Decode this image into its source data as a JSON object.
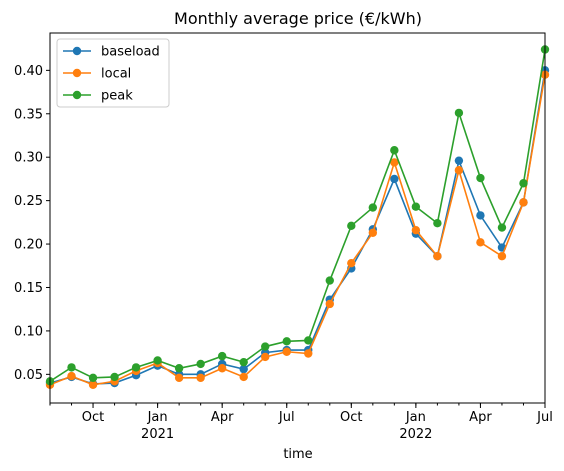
{
  "chart_data": {
    "type": "line",
    "title": "Monthly average price (€/kWh)",
    "xlabel": "time",
    "ylabel": "",
    "x": [
      "2020-08",
      "2020-09",
      "2020-10",
      "2020-11",
      "2020-12",
      "2021-01",
      "2021-02",
      "2021-03",
      "2021-04",
      "2021-05",
      "2021-06",
      "2021-07",
      "2021-08",
      "2021-09",
      "2021-10",
      "2021-11",
      "2021-12",
      "2022-01",
      "2022-02",
      "2022-03",
      "2022-04",
      "2022-05",
      "2022-06",
      "2022-07"
    ],
    "x_ticks": [
      {
        "month": "2020-10",
        "label": "Oct",
        "sublabel": ""
      },
      {
        "month": "2021-01",
        "label": "Jan",
        "sublabel": "2021"
      },
      {
        "month": "2021-04",
        "label": "Apr",
        "sublabel": ""
      },
      {
        "month": "2021-07",
        "label": "Jul",
        "sublabel": ""
      },
      {
        "month": "2021-10",
        "label": "Oct",
        "sublabel": ""
      },
      {
        "month": "2022-01",
        "label": "Jan",
        "sublabel": "2022"
      },
      {
        "month": "2022-04",
        "label": "Apr",
        "sublabel": ""
      },
      {
        "month": "2022-07",
        "label": "Jul",
        "sublabel": ""
      }
    ],
    "ylim": [
      0.017,
      0.443
    ],
    "y_ticks": [
      0.05,
      0.1,
      0.15,
      0.2,
      0.25,
      0.3,
      0.35,
      0.4
    ],
    "y_tick_labels": [
      "0.05",
      "0.10",
      "0.15",
      "0.20",
      "0.25",
      "0.30",
      "0.35",
      "0.40"
    ],
    "grid": false,
    "legend_position": "top-left",
    "series": [
      {
        "name": "baseload",
        "color": "#1f77b4",
        "values": [
          0.04,
          0.047,
          0.039,
          0.04,
          0.049,
          0.06,
          0.05,
          0.05,
          0.062,
          0.056,
          0.075,
          0.078,
          0.078,
          0.136,
          0.172,
          0.217,
          0.275,
          0.212,
          0.186,
          0.296,
          0.233,
          0.196,
          0.248,
          0.4
        ]
      },
      {
        "name": "local",
        "color": "#ff7f0e",
        "values": [
          0.038,
          0.048,
          0.038,
          0.042,
          0.054,
          0.063,
          0.046,
          0.046,
          0.057,
          0.047,
          0.07,
          0.076,
          0.074,
          0.131,
          0.178,
          0.213,
          0.294,
          0.216,
          0.186,
          0.285,
          0.202,
          0.186,
          0.248,
          0.395
        ]
      },
      {
        "name": "peak",
        "color": "#2ca02c",
        "values": [
          0.042,
          0.058,
          0.046,
          0.047,
          0.058,
          0.066,
          0.057,
          0.062,
          0.071,
          0.064,
          0.082,
          0.088,
          0.089,
          0.158,
          0.221,
          0.242,
          0.308,
          0.243,
          0.224,
          0.351,
          0.276,
          0.219,
          0.27,
          0.424
        ]
      }
    ]
  }
}
